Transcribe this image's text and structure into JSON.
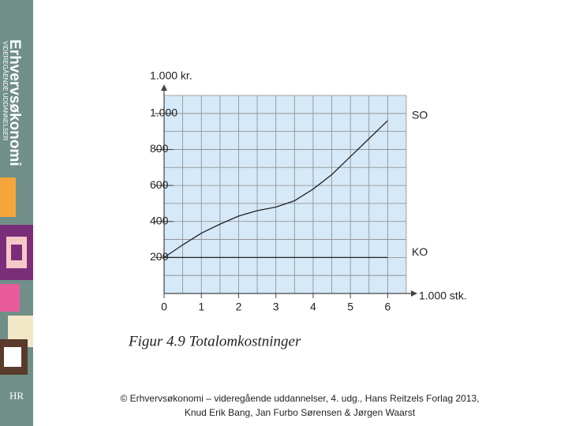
{
  "sidebar": {
    "title": "Erhvervsøkonomi",
    "subtitle": "VIDEREGÅENDE UDDANNELSER",
    "logo": "HR"
  },
  "chart_data": {
    "type": "line",
    "ylabel": "1.000 kr.",
    "xlabel": "1.000 stk.",
    "caption": "Figur 4.9 Totalomkostninger",
    "x": [
      0,
      0.5,
      1,
      1.5,
      2,
      2.5,
      3,
      3.5,
      4,
      4.5,
      5,
      5.5,
      6
    ],
    "series": [
      {
        "name": "SO",
        "color": "#222222",
        "values": [
          200,
          270,
          335,
          385,
          430,
          460,
          480,
          515,
          580,
          660,
          760,
          860,
          960
        ]
      },
      {
        "name": "KO",
        "color": "#222222",
        "values": [
          200,
          200,
          200,
          200,
          200,
          200,
          200,
          200,
          200,
          200,
          200,
          200,
          200
        ]
      }
    ],
    "xlim": [
      0,
      6.5
    ],
    "ylim": [
      0,
      1100
    ],
    "xticks": [
      0,
      1,
      2,
      3,
      4,
      5,
      6
    ],
    "yticks": [
      200,
      400,
      600,
      800,
      {
        "value": 1000,
        "label": "1.000"
      }
    ],
    "minor_xticks": [
      0.5,
      1.5,
      2.5,
      3.5,
      4.5,
      5.5,
      6.5
    ],
    "minor_yticks": [
      100,
      300,
      500,
      700,
      900,
      1100
    ],
    "grid": true,
    "background": "#d6e9f8"
  },
  "footer": {
    "line1": "© Erhvervsøkonomi – videregående uddannelser, 4. udg., Hans Reitzels Forlag 2013,",
    "line2": "Knud Erik Bang, Jan Furbo Sørensen & Jørgen Waarst"
  }
}
